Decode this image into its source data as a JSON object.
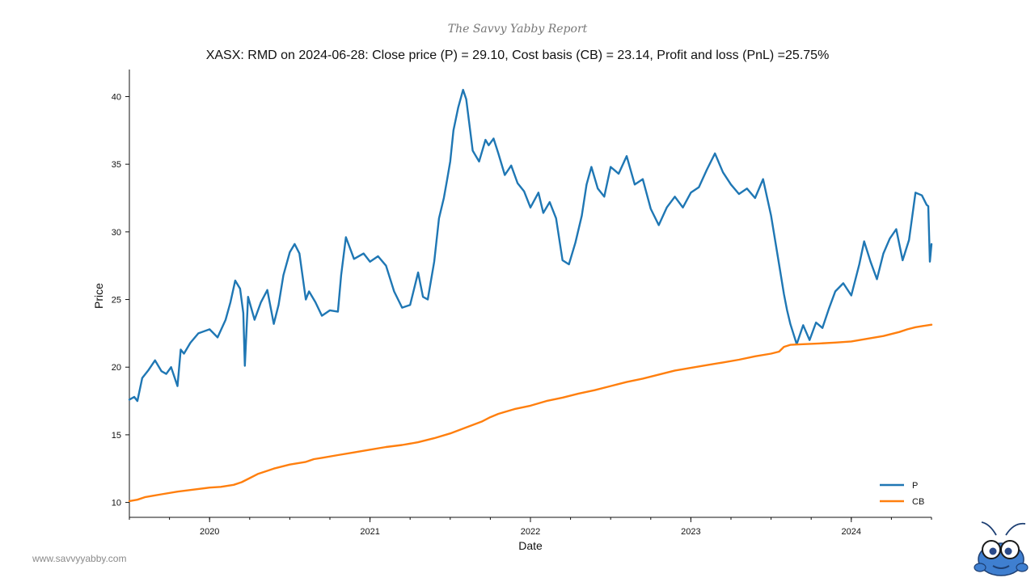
{
  "header": {
    "brand": "The Savvy Yabby Report",
    "title": "XASX: RMD on 2024-06-28: Close price (P) = 29.10, Cost basis (CB) = 23.14, Profit and loss (PnL) =25.75%"
  },
  "footer": {
    "url": "www.savvyyabby.com"
  },
  "chart_data": {
    "type": "line",
    "title": "XASX: RMD on 2024-06-28: Close price (P) = 29.10, Cost basis (CB) = 23.14, Profit and loss (PnL) =25.75%",
    "xlabel": "Date",
    "ylabel": "Price",
    "xlim": [
      2019.5,
      2024.5
    ],
    "ylim": [
      8.9,
      42
    ],
    "yticks": [
      10,
      15,
      20,
      25,
      30,
      35,
      40
    ],
    "xticks": [
      {
        "value": 2020,
        "label": "2020"
      },
      {
        "value": 2021,
        "label": "2021"
      },
      {
        "value": 2022,
        "label": "2022"
      },
      {
        "value": 2023,
        "label": "2023"
      },
      {
        "value": 2024,
        "label": "2024"
      }
    ],
    "legend_position": "bottom-right",
    "colors": {
      "P": "#1f77b4",
      "CB": "#ff7f0e"
    },
    "series": [
      {
        "name": "P",
        "x": [
          2019.5,
          2019.53,
          2019.55,
          2019.58,
          2019.62,
          2019.66,
          2019.7,
          2019.73,
          2019.76,
          2019.8,
          2019.82,
          2019.84,
          2019.88,
          2019.93,
          2020.0,
          2020.05,
          2020.1,
          2020.13,
          2020.16,
          2020.19,
          2020.21,
          2020.22,
          2020.24,
          2020.28,
          2020.32,
          2020.36,
          2020.4,
          2020.43,
          2020.46,
          2020.5,
          2020.53,
          2020.56,
          2020.6,
          2020.62,
          2020.66,
          2020.7,
          2020.75,
          2020.8,
          2020.82,
          2020.85,
          2020.9,
          2020.96,
          2021.0,
          2021.05,
          2021.1,
          2021.15,
          2021.2,
          2021.25,
          2021.3,
          2021.33,
          2021.36,
          2021.4,
          2021.43,
          2021.46,
          2021.48,
          2021.5,
          2021.52,
          2021.55,
          2021.58,
          2021.6,
          2021.64,
          2021.68,
          2021.72,
          2021.74,
          2021.77,
          2021.8,
          2021.84,
          2021.88,
          2021.92,
          2021.96,
          2022.0,
          2022.05,
          2022.08,
          2022.12,
          2022.16,
          2022.2,
          2022.24,
          2022.28,
          2022.32,
          2022.35,
          2022.38,
          2022.42,
          2022.46,
          2022.5,
          2022.55,
          2022.6,
          2022.65,
          2022.7,
          2022.75,
          2022.8,
          2022.85,
          2022.9,
          2022.95,
          2023.0,
          2023.05,
          2023.1,
          2023.15,
          2023.2,
          2023.25,
          2023.3,
          2023.35,
          2023.4,
          2023.45,
          2023.5,
          2023.55,
          2023.58,
          2023.6,
          2023.62,
          2023.66,
          2023.7,
          2023.74,
          2023.78,
          2023.82,
          2023.86,
          2023.9,
          2023.95,
          2024.0,
          2024.05,
          2024.08,
          2024.12,
          2024.16,
          2024.2,
          2024.24,
          2024.28,
          2024.32,
          2024.36,
          2024.4,
          2024.44,
          2024.47,
          2024.48,
          2024.49,
          2024.5
        ],
        "values": [
          17.6,
          17.8,
          17.5,
          19.2,
          19.8,
          20.5,
          19.7,
          19.5,
          20.0,
          18.6,
          21.3,
          21.0,
          21.8,
          22.5,
          22.8,
          22.2,
          23.5,
          24.8,
          26.4,
          25.8,
          24.0,
          20.1,
          25.2,
          23.5,
          24.8,
          25.7,
          23.2,
          24.6,
          26.8,
          28.5,
          29.1,
          28.4,
          25.0,
          25.6,
          24.8,
          23.8,
          24.2,
          24.1,
          26.8,
          29.6,
          28.0,
          28.4,
          27.8,
          28.2,
          27.5,
          25.6,
          24.4,
          24.6,
          27.0,
          25.2,
          25.0,
          27.8,
          31.0,
          32.5,
          33.8,
          35.2,
          37.5,
          39.2,
          40.5,
          39.8,
          36.0,
          35.2,
          36.8,
          36.4,
          36.9,
          35.8,
          34.2,
          34.9,
          33.6,
          33.0,
          31.8,
          32.9,
          31.4,
          32.2,
          31.0,
          27.9,
          27.6,
          29.2,
          31.2,
          33.5,
          34.8,
          33.2,
          32.6,
          34.8,
          34.3,
          35.6,
          33.5,
          33.9,
          31.7,
          30.5,
          31.8,
          32.6,
          31.8,
          32.9,
          33.3,
          34.6,
          35.8,
          34.4,
          33.5,
          32.8,
          33.2,
          32.5,
          33.9,
          31.2,
          27.6,
          25.4,
          24.2,
          23.2,
          21.7,
          23.1,
          22.0,
          23.3,
          22.9,
          24.3,
          25.6,
          26.2,
          25.3,
          27.6,
          29.3,
          27.8,
          26.5,
          28.4,
          29.5,
          30.2,
          27.9,
          29.4,
          32.9,
          32.7,
          32.0,
          31.9,
          27.8,
          29.1
        ]
      },
      {
        "name": "CB",
        "x": [
          2019.5,
          2019.55,
          2019.6,
          2019.65,
          2019.7,
          2019.8,
          2019.9,
          2020.0,
          2020.07,
          2020.15,
          2020.2,
          2020.25,
          2020.3,
          2020.35,
          2020.4,
          2020.5,
          2020.6,
          2020.65,
          2020.7,
          2020.8,
          2020.9,
          2021.0,
          2021.1,
          2021.2,
          2021.3,
          2021.4,
          2021.5,
          2021.6,
          2021.7,
          2021.75,
          2021.8,
          2021.9,
          2022.0,
          2022.1,
          2022.2,
          2022.3,
          2022.4,
          2022.5,
          2022.6,
          2022.7,
          2022.8,
          2022.9,
          2023.0,
          2023.1,
          2023.2,
          2023.3,
          2023.4,
          2023.5,
          2023.55,
          2023.58,
          2023.62,
          2023.7,
          2023.8,
          2023.9,
          2024.0,
          2024.1,
          2024.2,
          2024.25,
          2024.3,
          2024.35,
          2024.4,
          2024.45,
          2024.5
        ],
        "values": [
          10.1,
          10.2,
          10.4,
          10.5,
          10.6,
          10.8,
          10.95,
          11.1,
          11.15,
          11.3,
          11.5,
          11.8,
          12.1,
          12.3,
          12.5,
          12.8,
          13.0,
          13.2,
          13.3,
          13.5,
          13.7,
          13.9,
          14.1,
          14.25,
          14.45,
          14.75,
          15.1,
          15.55,
          16.0,
          16.3,
          16.55,
          16.9,
          17.15,
          17.5,
          17.75,
          18.05,
          18.3,
          18.6,
          18.9,
          19.15,
          19.45,
          19.75,
          19.95,
          20.15,
          20.35,
          20.55,
          20.8,
          21.0,
          21.15,
          21.5,
          21.65,
          21.7,
          21.75,
          21.82,
          21.9,
          22.1,
          22.3,
          22.45,
          22.6,
          22.8,
          22.95,
          23.05,
          23.14
        ]
      }
    ]
  }
}
